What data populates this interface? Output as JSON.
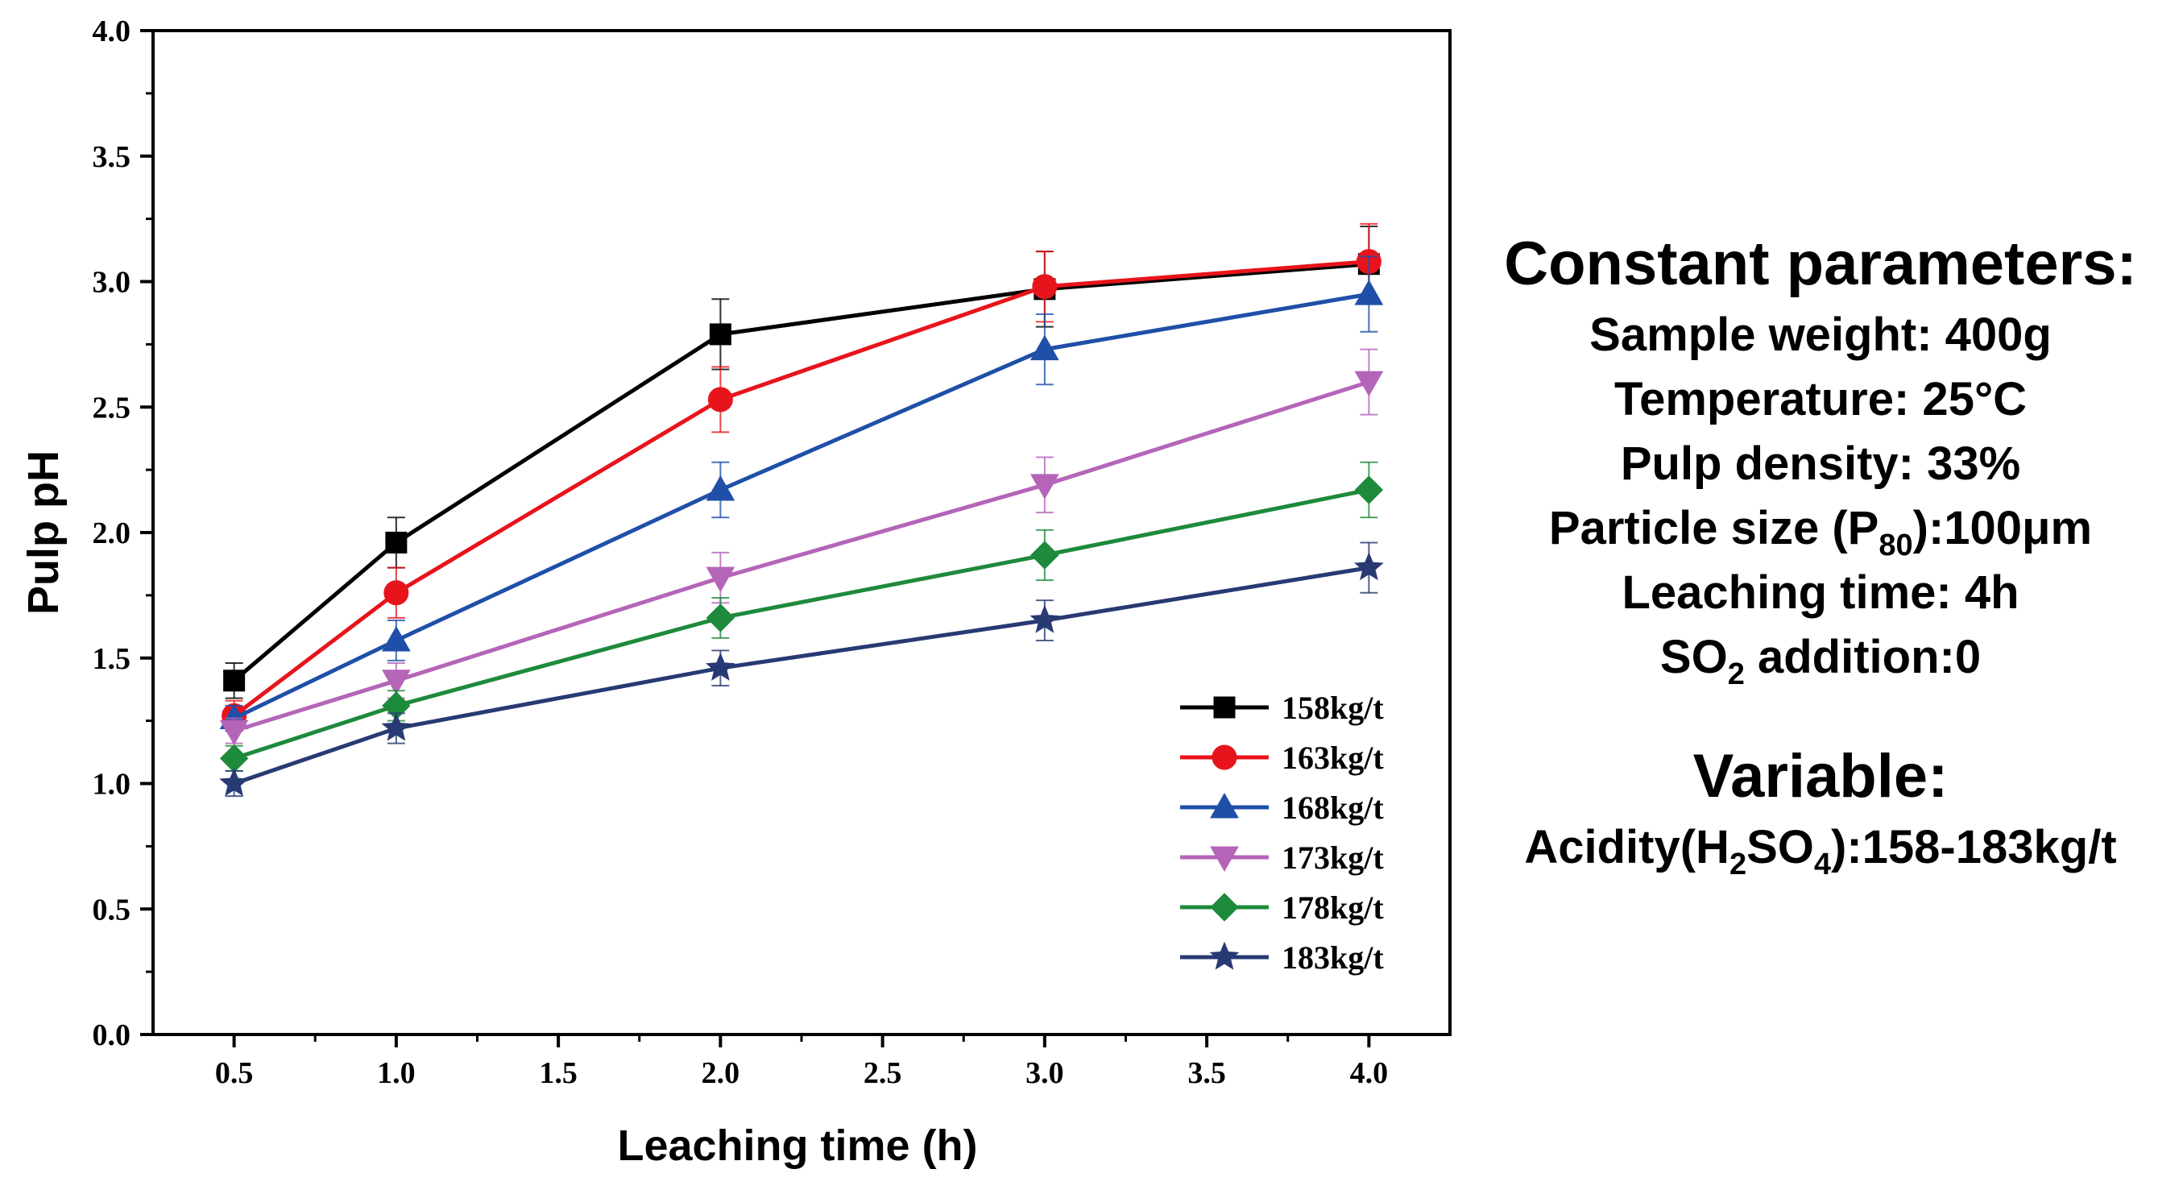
{
  "chart_data": {
    "type": "line",
    "xlabel": "Leaching time (h)",
    "ylabel": "Pulp pH",
    "xlim": [
      0.25,
      4.25
    ],
    "ylim": [
      0,
      4.0
    ],
    "x_ticks": [
      "0.5",
      "1.0",
      "1.5",
      "2.0",
      "2.5",
      "3.0",
      "3.5",
      "4.0"
    ],
    "y_ticks": [
      "0.0",
      "0.5",
      "1.0",
      "1.5",
      "2.0",
      "2.5",
      "3.0",
      "3.5",
      "4.0"
    ],
    "x": [
      0.5,
      1.0,
      2.0,
      3.0,
      4.0
    ],
    "legend_position": "bottom-right",
    "grid": false,
    "error_bars": true,
    "series": [
      {
        "name": "158kg/t",
        "color": "#000000",
        "marker": "square",
        "values": [
          1.41,
          1.96,
          2.79,
          2.97,
          3.07
        ],
        "errors": [
          0.07,
          0.1,
          0.14,
          0.15,
          0.15
        ]
      },
      {
        "name": "163kg/t",
        "color": "#e8141c",
        "marker": "circle",
        "values": [
          1.27,
          1.76,
          2.53,
          2.98,
          3.08
        ],
        "errors": [
          0.06,
          0.1,
          0.13,
          0.14,
          0.15
        ]
      },
      {
        "name": "168kg/t",
        "color": "#1f4fa8",
        "marker": "triangle-up",
        "values": [
          1.26,
          1.57,
          2.17,
          2.73,
          2.95
        ],
        "errors": [
          0.05,
          0.08,
          0.11,
          0.14,
          0.15
        ]
      },
      {
        "name": "173kg/t",
        "color": "#b565b8",
        "marker": "triangle-down",
        "values": [
          1.21,
          1.41,
          1.82,
          2.19,
          2.6
        ],
        "errors": [
          0.05,
          0.07,
          0.1,
          0.11,
          0.13
        ]
      },
      {
        "name": "178kg/t",
        "color": "#1e8a3c",
        "marker": "diamond",
        "values": [
          1.1,
          1.31,
          1.66,
          1.91,
          2.17
        ],
        "errors": [
          0.05,
          0.06,
          0.08,
          0.1,
          0.11
        ]
      },
      {
        "name": "183kg/t",
        "color": "#283a73",
        "marker": "star",
        "values": [
          1.0,
          1.22,
          1.46,
          1.65,
          1.86
        ],
        "errors": [
          0.05,
          0.06,
          0.07,
          0.08,
          0.1
        ]
      }
    ]
  },
  "panel": {
    "constant_heading": "Constant parameters:",
    "sample_weight": "Sample weight: 400g",
    "temperature": "Temperature: 25°C",
    "pulp_density": "Pulp density: 33%",
    "particle_size_prefix": "Particle size (P",
    "particle_size_sub": "80",
    "particle_size_suffix": "):100μm",
    "leaching_time": "Leaching time: 4h",
    "so2_prefix": "SO",
    "so2_sub": "2",
    "so2_suffix": " addition:0",
    "variable_heading": "Variable:",
    "acidity_prefix": "Acidity(H",
    "acidity_sub1": "2",
    "acidity_mid": "SO",
    "acidity_sub2": "4",
    "acidity_suffix": "):158-183kg/t"
  }
}
